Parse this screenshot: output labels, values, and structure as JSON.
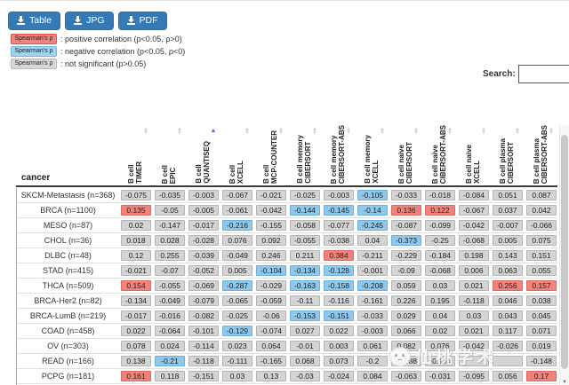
{
  "toolbar": {
    "buttons": [
      {
        "label": "Table"
      },
      {
        "label": "JPG"
      },
      {
        "label": "PDF"
      }
    ]
  },
  "legend": {
    "badge_label": "Spearman's ρ",
    "items": [
      {
        "kind": "pos",
        "text": ": positive correlation (p<0.05, ρ>0)"
      },
      {
        "kind": "neg",
        "text": ": negative correlation (p<0.05, ρ<0)"
      },
      {
        "kind": "ns",
        "text": ": not significant (p>0.05)"
      }
    ]
  },
  "search": {
    "label": "Search:",
    "value": "",
    "placeholder": ""
  },
  "colors": {
    "button_blue": "#337ab7",
    "positive_red": "#f2837b",
    "negative_blue": "#8fc8ea",
    "not_significant_gray": "#d4d4d4",
    "active_sort_arrow": "#5b63cc"
  },
  "table": {
    "corner_header": "cancer",
    "columns": [
      {
        "line1": "B cell",
        "line2": "TIMER",
        "sort": "none"
      },
      {
        "line1": "B cell",
        "line2": "EPIC",
        "sort": "none"
      },
      {
        "line1": "B cell",
        "line2": "QUANTISEQ",
        "sort": "asc"
      },
      {
        "line1": "B cell",
        "line2": "XCELL",
        "sort": "none"
      },
      {
        "line1": "B cell",
        "line2": "MCP-COUNTER",
        "sort": "none"
      },
      {
        "line1": "B cell memory",
        "line2": "CIBERSORT",
        "sort": "none"
      },
      {
        "line1": "B cell memory",
        "line2": "CIBERSORT-ABS",
        "sort": "none"
      },
      {
        "line1": "B cell memory",
        "line2": "XCELL",
        "sort": "none"
      },
      {
        "line1": "B cell naive",
        "line2": "CIBERSORT",
        "sort": "none"
      },
      {
        "line1": "B cell naive",
        "line2": "CIBERSORT-ABS",
        "sort": "none"
      },
      {
        "line1": "B cell naive",
        "line2": "XCELL",
        "sort": "none"
      },
      {
        "line1": "B cell plasma",
        "line2": "CIBERSORT",
        "sort": "none"
      },
      {
        "line1": "B cell plasma",
        "line2": "CIBERSORT-ABS",
        "sort": "none"
      }
    ],
    "rows": [
      {
        "cancer": "SKCM-Metastasis (n=368)",
        "cells": [
          [
            "-0.075",
            "g"
          ],
          [
            "-0.035",
            "g"
          ],
          [
            "-0.003",
            "g"
          ],
          [
            "-0.067",
            "g"
          ],
          [
            "-0.021",
            "g"
          ],
          [
            "-0.025",
            "g"
          ],
          [
            "-0.003",
            "g"
          ],
          [
            "-0.105",
            "b"
          ],
          [
            "-0.033",
            "g"
          ],
          [
            "-0.018",
            "g"
          ],
          [
            "-0.084",
            "g"
          ],
          [
            "0.051",
            "g"
          ],
          [
            "0.087",
            "g"
          ]
        ]
      },
      {
        "cancer": "BRCA (n=1100)",
        "cells": [
          [
            "0.135",
            "r"
          ],
          [
            "-0.05",
            "g"
          ],
          [
            "-0.005",
            "g"
          ],
          [
            "-0.061",
            "g"
          ],
          [
            "-0.042",
            "g"
          ],
          [
            "-0.144",
            "b"
          ],
          [
            "-0.145",
            "b"
          ],
          [
            "-0.14",
            "b"
          ],
          [
            "0.136",
            "r"
          ],
          [
            "0.122",
            "r"
          ],
          [
            "-0.067",
            "g"
          ],
          [
            "0.037",
            "g"
          ],
          [
            "0.042",
            "g"
          ]
        ]
      },
      {
        "cancer": "MESO (n=87)",
        "cells": [
          [
            "0.02",
            "g"
          ],
          [
            "-0.147",
            "g"
          ],
          [
            "-0.017",
            "g"
          ],
          [
            "-0.216",
            "b"
          ],
          [
            "-0.155",
            "g"
          ],
          [
            "-0.058",
            "g"
          ],
          [
            "-0.077",
            "g"
          ],
          [
            "-0.245",
            "b"
          ],
          [
            "-0.087",
            "g"
          ],
          [
            "-0.099",
            "g"
          ],
          [
            "-0.042",
            "g"
          ],
          [
            "-0.007",
            "g"
          ],
          [
            "-0.066",
            "g"
          ]
        ]
      },
      {
        "cancer": "CHOL (n=36)",
        "cells": [
          [
            "0.018",
            "g"
          ],
          [
            "0.028",
            "g"
          ],
          [
            "-0.028",
            "g"
          ],
          [
            "0.076",
            "g"
          ],
          [
            "0.092",
            "g"
          ],
          [
            "-0.055",
            "g"
          ],
          [
            "-0.038",
            "g"
          ],
          [
            "0.04",
            "g"
          ],
          [
            "-0.373",
            "b"
          ],
          [
            "-0.25",
            "g"
          ],
          [
            "-0.068",
            "g"
          ],
          [
            "0.005",
            "g"
          ],
          [
            "0.075",
            "g"
          ]
        ]
      },
      {
        "cancer": "DLBC (n=48)",
        "cells": [
          [
            "0.12",
            "g"
          ],
          [
            "0.255",
            "g"
          ],
          [
            "-0.039",
            "g"
          ],
          [
            "-0.049",
            "g"
          ],
          [
            "0.246",
            "g"
          ],
          [
            "0.211",
            "g"
          ],
          [
            "0.384",
            "r"
          ],
          [
            "-0.211",
            "g"
          ],
          [
            "-0.229",
            "g"
          ],
          [
            "-0.184",
            "g"
          ],
          [
            "0.198",
            "g"
          ],
          [
            "0.143",
            "g"
          ],
          [
            "0.151",
            "g"
          ]
        ]
      },
      {
        "cancer": "STAD (n=415)",
        "cells": [
          [
            "-0.021",
            "g"
          ],
          [
            "-0.07",
            "g"
          ],
          [
            "-0.052",
            "g"
          ],
          [
            "0.005",
            "g"
          ],
          [
            "-0.104",
            "b"
          ],
          [
            "-0.134",
            "b"
          ],
          [
            "-0.128",
            "b"
          ],
          [
            "-0.001",
            "g"
          ],
          [
            "-0.09",
            "g"
          ],
          [
            "-0.068",
            "g"
          ],
          [
            "0.006",
            "g"
          ],
          [
            "0.063",
            "g"
          ],
          [
            "0.055",
            "g"
          ]
        ]
      },
      {
        "cancer": "THCA (n=509)",
        "cells": [
          [
            "0.154",
            "r"
          ],
          [
            "-0.055",
            "g"
          ],
          [
            "-0.069",
            "g"
          ],
          [
            "-0.287",
            "b"
          ],
          [
            "-0.029",
            "g"
          ],
          [
            "-0.163",
            "b"
          ],
          [
            "-0.158",
            "b"
          ],
          [
            "-0.208",
            "b"
          ],
          [
            "0.059",
            "g"
          ],
          [
            "0.03",
            "g"
          ],
          [
            "0.021",
            "g"
          ],
          [
            "0.256",
            "r"
          ],
          [
            "0.157",
            "r"
          ]
        ]
      },
      {
        "cancer": "BRCA-Her2 (n=82)",
        "cells": [
          [
            "-0.134",
            "g"
          ],
          [
            "-0.049",
            "g"
          ],
          [
            "-0.079",
            "g"
          ],
          [
            "-0.065",
            "g"
          ],
          [
            "-0.059",
            "g"
          ],
          [
            "-0.11",
            "g"
          ],
          [
            "-0.116",
            "g"
          ],
          [
            "-0.161",
            "g"
          ],
          [
            "0.226",
            "g"
          ],
          [
            "0.195",
            "g"
          ],
          [
            "-0.118",
            "g"
          ],
          [
            "0.046",
            "g"
          ],
          [
            "0.038",
            "g"
          ]
        ]
      },
      {
        "cancer": "BRCA-LumB (n=219)",
        "cells": [
          [
            "-0.017",
            "g"
          ],
          [
            "-0.016",
            "g"
          ],
          [
            "-0.082",
            "g"
          ],
          [
            "-0.025",
            "g"
          ],
          [
            "-0.06",
            "g"
          ],
          [
            "-0.153",
            "b"
          ],
          [
            "-0.151",
            "b"
          ],
          [
            "-0.033",
            "g"
          ],
          [
            "0.029",
            "g"
          ],
          [
            "0.04",
            "g"
          ],
          [
            "0.03",
            "g"
          ],
          [
            "0.043",
            "g"
          ],
          [
            "0.045",
            "g"
          ]
        ]
      },
      {
        "cancer": "COAD (n=458)",
        "cells": [
          [
            "0.022",
            "g"
          ],
          [
            "-0.064",
            "g"
          ],
          [
            "-0.101",
            "g"
          ],
          [
            "-0.129",
            "b"
          ],
          [
            "-0.074",
            "g"
          ],
          [
            "0.027",
            "g"
          ],
          [
            "0.022",
            "g"
          ],
          [
            "-0.003",
            "g"
          ],
          [
            "0.066",
            "g"
          ],
          [
            "0.02",
            "g"
          ],
          [
            "0.021",
            "g"
          ],
          [
            "0.117",
            "g"
          ],
          [
            "0.071",
            "g"
          ]
        ]
      },
      {
        "cancer": "OV (n=303)",
        "cells": [
          [
            "0.078",
            "g"
          ],
          [
            "0.024",
            "g"
          ],
          [
            "-0.114",
            "g"
          ],
          [
            "0.023",
            "g"
          ],
          [
            "0.064",
            "g"
          ],
          [
            "-0.01",
            "g"
          ],
          [
            "0.003",
            "g"
          ],
          [
            "0.061",
            "g"
          ],
          [
            "0.082",
            "g"
          ],
          [
            "0.076",
            "g"
          ],
          [
            "-0.042",
            "g"
          ],
          [
            "-0.026",
            "g"
          ],
          [
            "0.019",
            "g"
          ]
        ]
      },
      {
        "cancer": "READ (n=166)",
        "cells": [
          [
            "0.138",
            "g"
          ],
          [
            "-0.21",
            "b"
          ],
          [
            "-0.118",
            "g"
          ],
          [
            "-0.111",
            "g"
          ],
          [
            "-0.165",
            "g"
          ],
          [
            "0.068",
            "g"
          ],
          [
            "0.073",
            "g"
          ],
          [
            "-0.2",
            "g"
          ],
          [
            "-0.088",
            "g"
          ],
          [
            "-0.114",
            "g"
          ],
          [
            "",
            "g"
          ],
          [
            "",
            "g"
          ],
          [
            "-0.148",
            "g"
          ]
        ]
      },
      {
        "cancer": "PCPG (n=181)",
        "cells": [
          [
            "0.161",
            "r"
          ],
          [
            "0.118",
            "g"
          ],
          [
            "-0.151",
            "g"
          ],
          [
            "0.03",
            "g"
          ],
          [
            "0.13",
            "g"
          ],
          [
            "-0.03",
            "g"
          ],
          [
            "-0.024",
            "g"
          ],
          [
            "0.084",
            "g"
          ],
          [
            "-0.063",
            "g"
          ],
          [
            "-0.031",
            "g"
          ],
          [
            "-0.095",
            "g"
          ],
          [
            "0.056",
            "g"
          ],
          [
            "0.17",
            "r"
          ]
        ]
      },
      {
        "cancer": "",
        "cells": [
          [
            "",
            "g"
          ],
          [
            "",
            "g"
          ],
          [
            "",
            "g"
          ],
          [
            "",
            "g"
          ],
          [
            "",
            "g"
          ],
          [
            "",
            "g"
          ],
          [
            "",
            "g"
          ],
          [
            "",
            "g"
          ],
          [
            "",
            "g"
          ],
          [
            "",
            "g"
          ],
          [
            "",
            "g"
          ],
          [
            "",
            "g"
          ],
          [
            "",
            "g"
          ]
        ]
      }
    ]
  },
  "watermark": {
    "text": "仙桃学术"
  }
}
